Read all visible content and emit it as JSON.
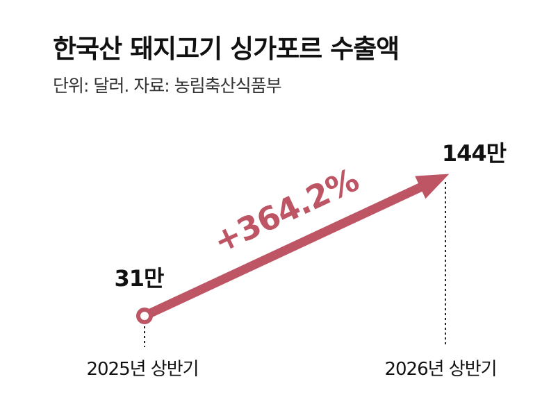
{
  "title": "한국산 돼지고기 싱가포르 수출액",
  "subtitle": "단위: 달러. 자료: 농림축산식품부",
  "chart_data": {
    "type": "line",
    "categories": [
      "2025년 상반기",
      "2026년 상반기"
    ],
    "series": [
      {
        "values": [
          310000,
          1440000
        ]
      }
    ],
    "data_labels": [
      "31만",
      "144만"
    ],
    "annotation": "+364.2%",
    "color": "#bd5565"
  }
}
